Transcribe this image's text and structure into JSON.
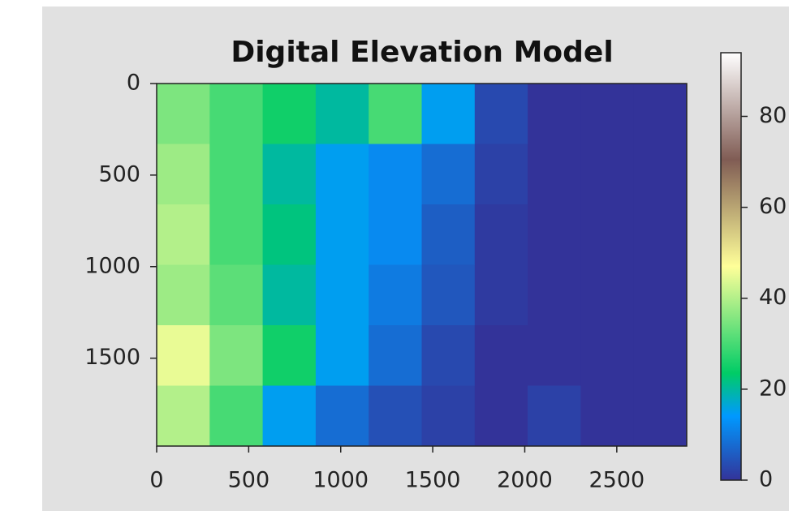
{
  "chart_data": {
    "type": "heatmap",
    "title": "Digital Elevation Model",
    "colormap": "terrain",
    "xlim": [
      0,
      2880
    ],
    "xticks": [
      0,
      500,
      1000,
      1500,
      2000,
      2500
    ],
    "ylim": [
      1980,
      0
    ],
    "yticks": [
      0,
      500,
      1000,
      1500
    ],
    "clim": [
      0,
      94
    ],
    "cticks": [
      0,
      20,
      40,
      60,
      80
    ],
    "z": [
      [
        35,
        30,
        25,
        20,
        30,
        15,
        3,
        0,
        0,
        0
      ],
      [
        38,
        30,
        20,
        15,
        12,
        8,
        2,
        0,
        0,
        0
      ],
      [
        40,
        30,
        22,
        15,
        12,
        6,
        1,
        0,
        0,
        0
      ],
      [
        38,
        32,
        20,
        15,
        10,
        5,
        1,
        0,
        0,
        0
      ],
      [
        45,
        35,
        25,
        15,
        8,
        3,
        0,
        0,
        0,
        0
      ],
      [
        40,
        30,
        15,
        8,
        4,
        2,
        0,
        2,
        0,
        0
      ]
    ]
  }
}
